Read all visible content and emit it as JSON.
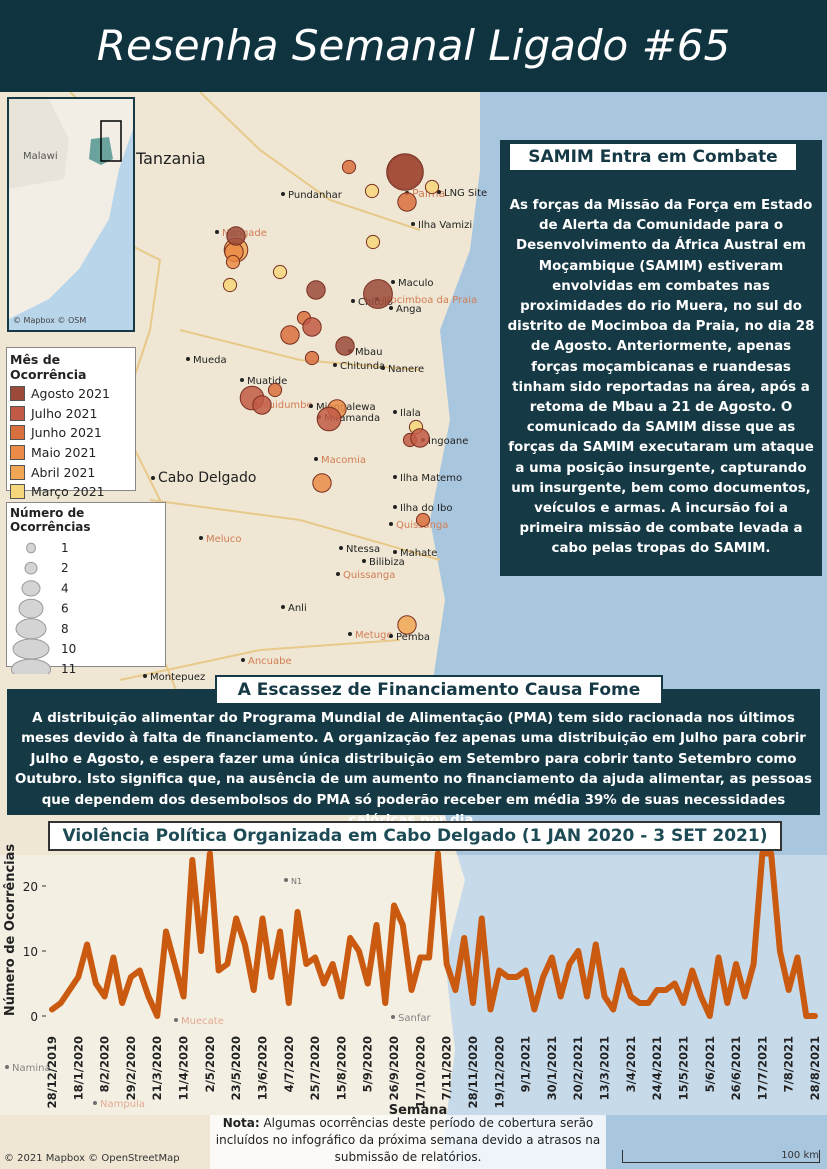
{
  "header": {
    "title": "Resenha Semanal Ligado #65"
  },
  "map": {
    "inset": {
      "labels": [
        "Malawi",
        "© Mapbox © OSM"
      ]
    },
    "places": [
      "Tanzania",
      "Palma",
      "LNG Site",
      "Pundanhar",
      "Ilha Vamizi",
      "Nangade",
      "Maculo",
      "Chitolo",
      "Mocimboa da Praia",
      "Anga",
      "Mueda",
      "Chitunda",
      "Mbau",
      "Nanere",
      "Muatide",
      "Muidumbe",
      "Miangalewa",
      "Mitamanda",
      "Ilala",
      "Ingoane",
      "Macomia",
      "Cabo Delgado",
      "Ilha Matemo",
      "Meluco",
      "Ilha do Ibo",
      "Quissanga",
      "Ntessa",
      "Bilibiza",
      "Mahate",
      "Quissanga",
      "Anli",
      "Metuge",
      "Pemba",
      "Ancuabe",
      "Montepuez",
      "N1",
      "Namina",
      "Nampula",
      "Muecate",
      "Sanfar"
    ],
    "attribution": "© 2021 Mapbox © OpenStreetMap",
    "scale": "100 km"
  },
  "month_legend": {
    "title": "Mês de Ocorrência",
    "months": [
      {
        "name": "Agosto 2021",
        "color": "#9b4a3a",
        "events": [
          11,
          8,
          4,
          4,
          4
        ]
      },
      {
        "name": "Julho 2021",
        "color": "#c25b45",
        "events": [
          6,
          4,
          6,
          4,
          2,
          4
        ]
      },
      {
        "name": "Junho 2021",
        "color": "#d8703e",
        "events": [
          10,
          4,
          4,
          2,
          2,
          2,
          2,
          2
        ]
      },
      {
        "name": "Maio 2021",
        "color": "#ea8b47",
        "events": [
          4,
          4,
          4,
          8,
          2
        ]
      },
      {
        "name": "Abril 2021",
        "color": "#f1a654",
        "events": [
          6,
          4
        ]
      },
      {
        "name": "Março 2021",
        "color": "#f6d67a",
        "events": [
          2,
          2,
          2,
          2,
          2,
          2
        ]
      }
    ]
  },
  "size_legend": {
    "title": "Número de Ocorrências",
    "values": [
      1,
      2,
      4,
      6,
      8,
      10,
      11
    ]
  },
  "samim": {
    "title": "SAMIM Entra em Combate",
    "text": "As forças da Missão da Força em Estado de Alerta  da Comunidade para o Desenvolvimento da África Austral em Moçambique (SAMIM) estiveram envolvidas em combates nas proximidades do rio Muera, no sul do distrito de Mocimboa da Praia, no dia 28 de Agosto. Anteriormente, apenas forças moçambicanas e ruandesas tinham sido reportadas na área, após a retoma de Mbau a 21 de Agosto. O comunicado da SAMIM disse que as forças da SAMIM executaram um ataque a uma posição insurgente, capturando um insurgente, bem como documentos, veículos e armas. A incursão foi a primeira missão de combate levada a cabo pelas tropas do SAMIM."
  },
  "funding": {
    "title": "A Escassez de Financiamento Causa Fome",
    "text": "A distribuição alimentar do Programa Mundial de Alimentação (PMA) tem sido racionada nos últimos meses devido à falta de financiamento. A organização fez apenas uma distribuição em Julho para cobrir Julho e Agosto, e espera fazer uma única distribuição em Setembro para cobrir tanto Setembro como Outubro. Isto significa que, na ausência de um aumento no financiamento da ajuda alimentar, as pessoas que dependem dos desembolsos do PMA só poderão receber em média 39% de suas necessidades calóricas por dia."
  },
  "note": {
    "label": "Nota:",
    "text": "Algumas ocorrências deste período de cobertura serão incluídos no infográfico da próxima semana devido a atrasos na submissão de relatórios."
  },
  "chart_data": {
    "type": "line",
    "title": "Violência Política Organizada em Cabo Delgado (1 JAN 2020 - 3 SET 2021)",
    "x_label": "Semana",
    "y_label": "Número de Ocorrências",
    "color": "#c95a10",
    "categories": [
      "28/12/2019",
      null,
      null,
      "18/1/2020",
      null,
      null,
      "8/2/2020",
      null,
      null,
      "29/2/2020",
      null,
      null,
      "21/3/2020",
      null,
      null,
      "11/4/2020",
      null,
      null,
      "2/5/2020",
      null,
      null,
      "23/5/2020",
      null,
      null,
      "13/6/2020",
      null,
      null,
      "4/7/2020",
      null,
      null,
      "25/7/2020",
      null,
      null,
      "15/8/2020",
      null,
      null,
      "5/9/2020",
      null,
      null,
      "26/9/2020",
      null,
      null,
      "17/10/2020",
      null,
      null,
      "7/11/2020",
      null,
      null,
      "28/11/2020",
      null,
      null,
      "19/12/2020",
      null,
      null,
      "9/1/2021",
      null,
      null,
      "30/1/2021",
      null,
      null,
      "20/2/2021",
      null,
      null,
      "13/3/2021",
      null,
      null,
      "3/4/2021",
      null,
      null,
      "24/4/2021",
      null,
      null,
      "15/5/2021",
      null,
      null,
      "5/6/2021",
      null,
      null,
      "26/6/2021",
      null,
      null,
      "17/7/2021",
      null,
      null,
      "7/8/2021",
      null,
      null,
      "28/8/2021"
    ],
    "values": [
      1,
      2,
      4,
      6,
      11,
      5,
      3,
      9,
      2,
      6,
      7,
      3,
      0,
      13,
      8,
      3,
      24,
      10,
      25,
      7,
      8,
      15,
      11,
      4,
      15,
      6,
      13,
      2,
      16,
      8,
      9,
      5,
      8,
      3,
      12,
      10,
      5,
      14,
      2,
      17,
      14,
      4,
      9,
      9,
      25,
      8,
      4,
      12,
      2,
      15,
      1,
      7,
      6,
      6,
      7,
      1,
      6,
      9,
      3,
      8,
      10,
      3,
      11,
      3,
      1,
      7,
      3,
      2,
      2,
      4,
      4,
      5,
      2,
      7,
      3,
      0,
      9,
      2,
      8,
      3,
      8,
      25,
      25,
      10,
      4,
      9,
      0,
      0
    ],
    "ylim": [
      -2,
      26
    ],
    "yticks": [
      0,
      10,
      20
    ],
    "grid": false
  }
}
